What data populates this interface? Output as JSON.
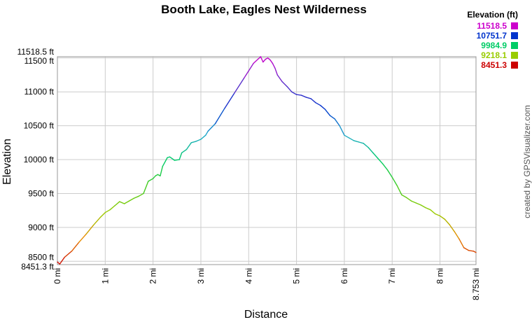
{
  "chart_data": {
    "type": "line",
    "title": "Booth Lake, Eagles Nest Wilderness",
    "xlabel": "Distance",
    "ylabel": "Elevation",
    "x_unit": "mi",
    "y_unit": "ft",
    "xlim": [
      0,
      8.753
    ],
    "ylim": [
      8451.3,
      11518.5
    ],
    "x_ticks": [
      "0 mi",
      "1 mi",
      "2 mi",
      "3 mi",
      "4 mi",
      "5 mi",
      "6 mi",
      "7 mi",
      "8 mi",
      "8.753 mi"
    ],
    "y_ticks": [
      "8451.3 ft",
      "8500 ft",
      "9000 ft",
      "9500 ft",
      "10000 ft",
      "10500 ft",
      "11000 ft",
      "11500 ft",
      "11518.5 ft"
    ],
    "grid": true,
    "legend": {
      "title": "Elevation (ft)",
      "placement": "top-right",
      "entries": [
        {
          "label": "11518.5",
          "color": "#cc00cc"
        },
        {
          "label": "10751.7",
          "color": "#0033cc"
        },
        {
          "label": "9984.9",
          "color": "#00cc66"
        },
        {
          "label": "9218.1",
          "color": "#99cc00"
        },
        {
          "label": "8451.3",
          "color": "#cc0000"
        }
      ]
    },
    "credit": "created by GPSVisualizer.com",
    "series": [
      {
        "x": [
          0,
          0.05,
          0.15,
          0.3,
          0.45,
          0.6,
          0.75,
          0.9,
          1.0,
          1.1,
          1.2,
          1.3,
          1.4,
          1.5,
          1.6,
          1.7,
          1.8,
          1.9,
          2.0,
          2.05,
          2.1,
          2.15,
          2.2,
          2.3,
          2.35,
          2.45,
          2.55,
          2.6,
          2.7,
          2.8,
          2.9,
          3.0,
          3.1,
          3.15,
          3.3,
          3.5,
          3.7,
          3.9,
          4.1,
          4.25,
          4.3,
          4.35,
          4.4,
          4.45,
          4.5,
          4.55,
          4.6,
          4.7,
          4.8,
          4.9,
          5.0,
          5.1,
          5.2,
          5.3,
          5.4,
          5.5,
          5.6,
          5.7,
          5.8,
          5.9,
          6.0,
          6.1,
          6.2,
          6.3,
          6.4,
          6.5,
          6.6,
          6.7,
          6.8,
          6.9,
          7.0,
          7.1,
          7.2,
          7.3,
          7.4,
          7.5,
          7.6,
          7.7,
          7.8,
          7.9,
          8.0,
          8.1,
          8.2,
          8.3,
          8.4,
          8.5,
          8.6,
          8.7,
          8.753
        ],
        "y": [
          8490,
          8460,
          8560,
          8650,
          8780,
          8900,
          9030,
          9150,
          9220,
          9260,
          9320,
          9380,
          9350,
          9390,
          9430,
          9460,
          9500,
          9680,
          9720,
          9760,
          9780,
          9760,
          9900,
          10030,
          10040,
          9990,
          10000,
          10100,
          10150,
          10250,
          10270,
          10300,
          10360,
          10420,
          10530,
          10760,
          10980,
          11200,
          11420,
          11518.5,
          11440,
          11480,
          11500,
          11470,
          11420,
          11350,
          11250,
          11150,
          11080,
          11000,
          10960,
          10950,
          10920,
          10900,
          10840,
          10800,
          10740,
          10650,
          10600,
          10500,
          10360,
          10320,
          10280,
          10260,
          10240,
          10180,
          10100,
          10020,
          9940,
          9850,
          9740,
          9620,
          9480,
          9440,
          9390,
          9360,
          9330,
          9290,
          9260,
          9200,
          9170,
          9120,
          9040,
          8940,
          8830,
          8700,
          8660,
          8650,
          8630
        ]
      }
    ]
  }
}
